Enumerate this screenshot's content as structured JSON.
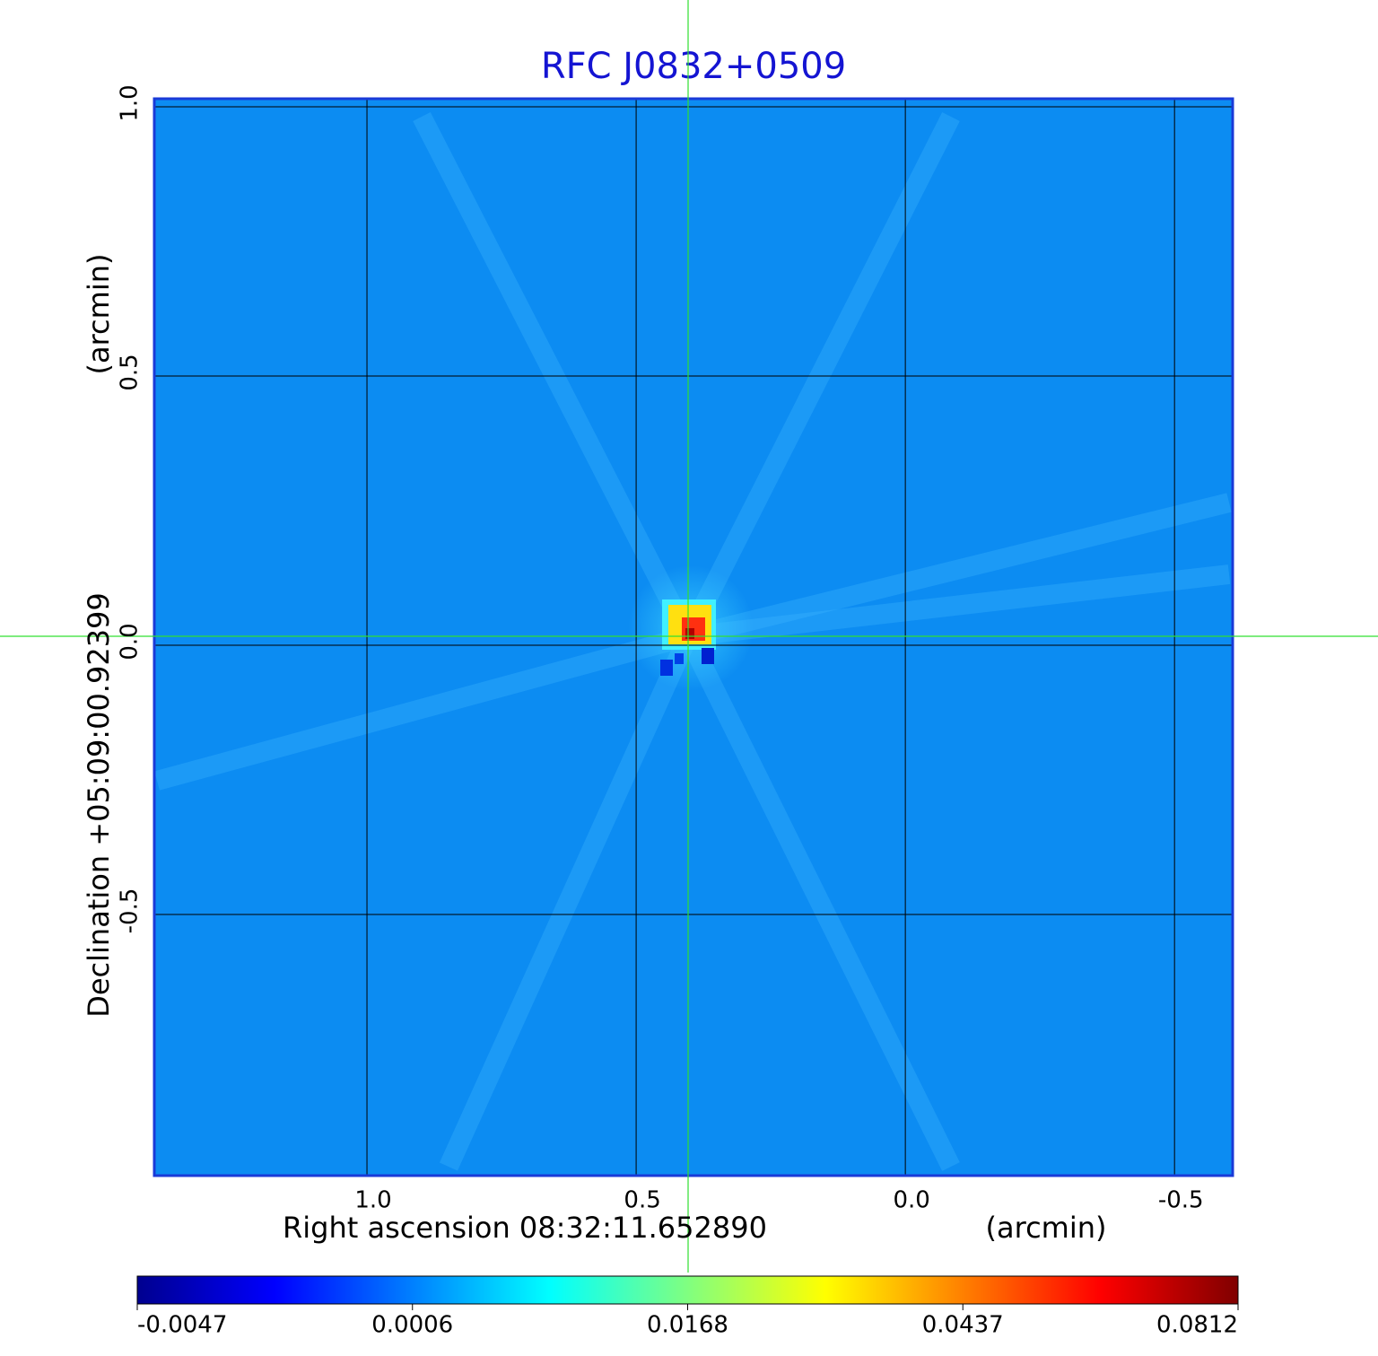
{
  "chart_data": {
    "type": "image",
    "title": "RFC J0832+0509",
    "xlabel": "Right ascension  08:32:11.652890",
    "xunit": "(arcmin)",
    "ylabel": "Declination  +05:09:00.92399",
    "yunit": "(arcmin)",
    "xlim": [
      1.395,
      -0.608
    ],
    "ylim": [
      -0.985,
      1.015
    ],
    "xticks": [
      {
        "value": 1,
        "label": "1.0"
      },
      0.5,
      {
        "value": 0,
        "label": "0.0"
      },
      -0.5
    ],
    "yticks": [
      -0.5,
      {
        "value": 0,
        "label": "0.0"
      },
      0.5,
      {
        "value": 1,
        "label": "1.0"
      }
    ],
    "grid": true,
    "colormap": "jet",
    "colorbar_ticks": [
      -0.0047,
      0.0006,
      0.0168,
      0.0437,
      0.0812
    ]
  }
}
